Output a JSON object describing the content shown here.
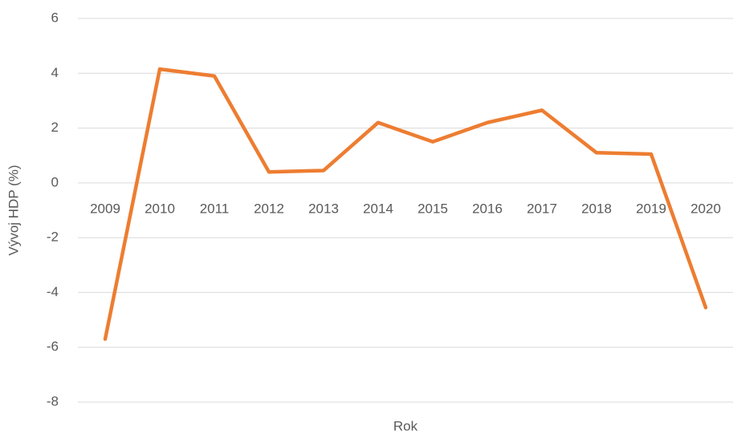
{
  "chart_data": {
    "type": "line",
    "categories": [
      "2009",
      "2010",
      "2011",
      "2012",
      "2013",
      "2014",
      "2015",
      "2016",
      "2017",
      "2018",
      "2019",
      "2020"
    ],
    "series": [
      {
        "name": "Vývoj HDP",
        "color": "#ed7d31",
        "values": [
          -5.7,
          4.15,
          3.9,
          0.4,
          0.45,
          2.2,
          1.5,
          2.2,
          2.65,
          1.1,
          1.05,
          -4.55
        ]
      }
    ],
    "ylabel": "Vývoj HDP (%)",
    "xlabel": "Rok",
    "ylim": [
      -8,
      6
    ],
    "yticks": [
      -8,
      -6,
      -4,
      -2,
      0,
      2,
      4,
      6
    ],
    "grid": true
  }
}
